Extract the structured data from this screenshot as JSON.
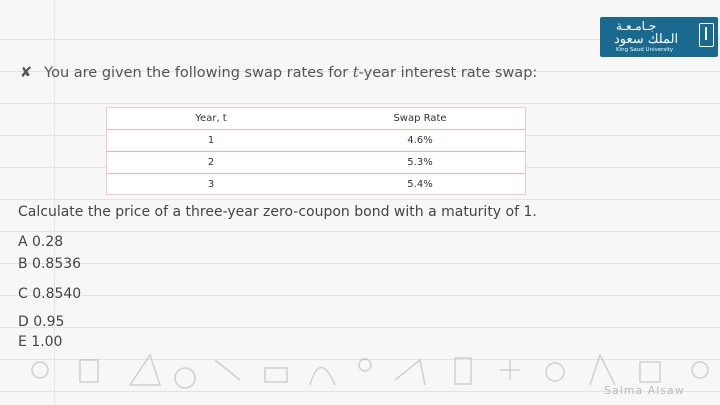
{
  "logo": {
    "arabic_line1": "جـامـعـة",
    "arabic_line2": "الملك سعود",
    "english": "King Saud University"
  },
  "question": {
    "bullet": "✘",
    "text_before": "You are given the following swap rates for ",
    "var": "t",
    "text_after": "-year interest rate swap:"
  },
  "table": {
    "headers": [
      "Year, t",
      "Swap Rate"
    ],
    "rows": [
      [
        "1",
        "4.6%"
      ],
      [
        "2",
        "5.3%"
      ],
      [
        "3",
        "5.4%"
      ]
    ]
  },
  "subquestion": "Calculate the price of a three-year zero-coupon bond with a maturity of 1.",
  "options": [
    "A 0.28",
    "B 0.8536",
    "C 0.8540",
    "D 0.95",
    "E 1.00"
  ],
  "watermark": "Salma Alsaw"
}
